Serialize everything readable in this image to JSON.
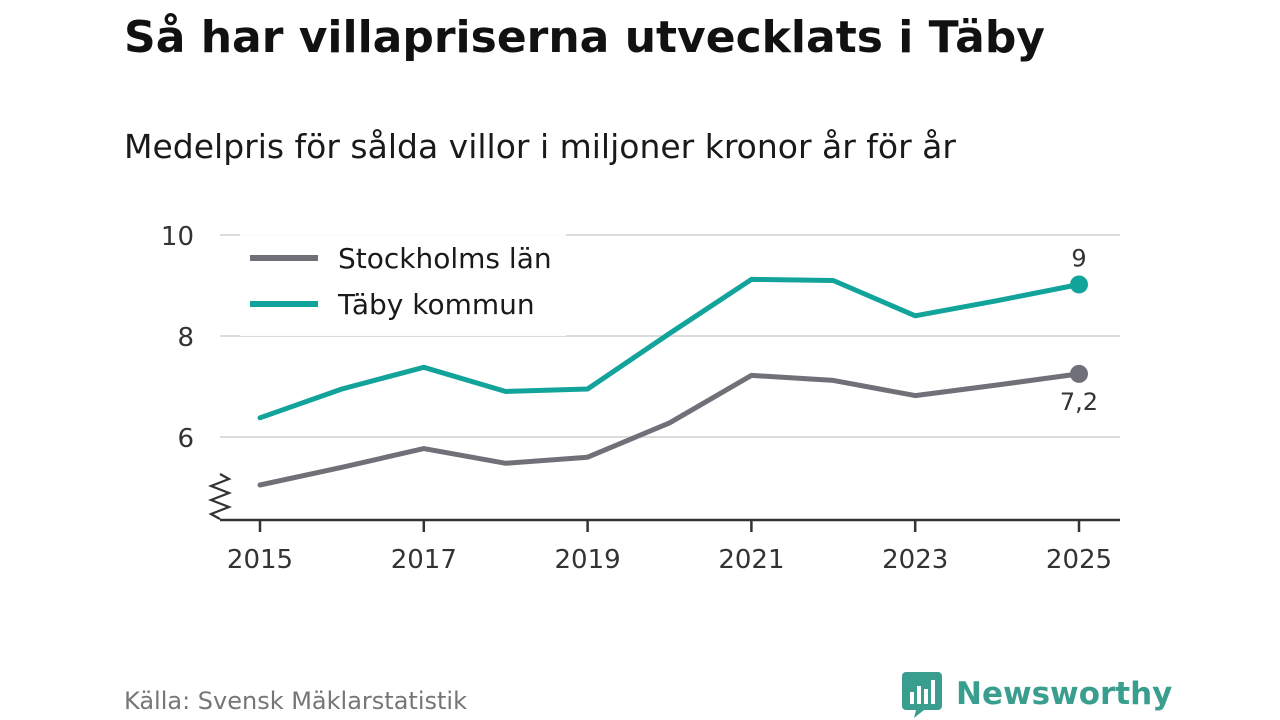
{
  "header": {
    "title": "Så har villapriserna utvecklats i Täby",
    "subtitle": "Medelpris för sålda villor i miljoner kronor år för år"
  },
  "footer": {
    "source": "Källa: Svensk Mäklarstatistik",
    "brand": "Newsworthy"
  },
  "colors": {
    "stockholm": "#707078",
    "taby": "#12a39b",
    "grid": "#dcdcdc",
    "axis": "#333333",
    "brand": "#3a9e8f"
  },
  "icons": {
    "brand_logo": "bar-chart-speech-bubble-icon",
    "axis_break": "axis-break-zigzag-icon"
  },
  "chart_data": {
    "type": "line",
    "title": "Så har villapriserna utvecklats i Täby",
    "subtitle": "Medelpris för sålda villor i miljoner kronor år för år",
    "xlabel": "",
    "ylabel": "",
    "x": [
      2015,
      2016,
      2017,
      2018,
      2019,
      2020,
      2021,
      2022,
      2023,
      2024,
      2025
    ],
    "x_ticks": [
      "2015",
      "2017",
      "2019",
      "2021",
      "2023",
      "2025"
    ],
    "y_ticks": [
      "10",
      "8",
      "6"
    ],
    "ylim": [
      4.3,
      10
    ],
    "xlim": [
      2014.5,
      2025.5
    ],
    "grid": true,
    "axis_break": true,
    "legend": "top-left",
    "series": [
      {
        "name": "Stockholms län",
        "color": "#707078",
        "values": [
          5.05,
          5.4,
          5.77,
          5.48,
          5.6,
          6.28,
          7.22,
          7.12,
          6.82,
          7.03,
          7.25
        ],
        "end_label": "7,2"
      },
      {
        "name": "Täby kommun",
        "color": "#12a39b",
        "values": [
          6.38,
          6.95,
          7.38,
          6.9,
          6.95,
          8.05,
          9.12,
          9.1,
          8.4,
          8.7,
          9.02
        ],
        "end_label": "9"
      }
    ]
  }
}
